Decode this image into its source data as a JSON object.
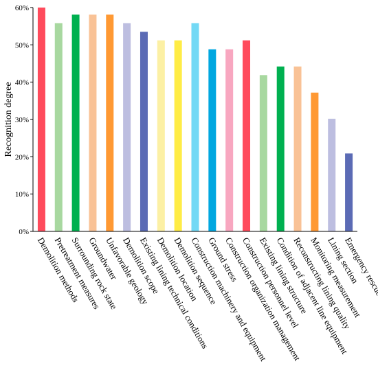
{
  "chart_data": {
    "type": "bar",
    "title": "",
    "xlabel": "",
    "ylabel": "Recognition degree",
    "ylim": [
      0,
      60
    ],
    "yticks": [
      "0%",
      "10%",
      "20%",
      "30%",
      "40%",
      "50%",
      "60%"
    ],
    "grid": false,
    "categories": [
      "Demolition methods",
      "Pretreatment measures",
      "Surrounding rock state",
      "Groundwater",
      "Unfavorable geology",
      "Demolition scope",
      "Existing lining technical conditions",
      "Demolition location",
      "Demolition sequence",
      "Construction machinery and equipment",
      "Ground stress",
      "Construction organization management",
      "Construction personnel level",
      "Existing lining structure",
      "Condition of adjacent line equipment",
      "Reconstructing lining quality",
      "Monitoring measurement",
      "Lining section",
      "Emergency rescue"
    ],
    "values": [
      60.0,
      55.8,
      58.1,
      58.1,
      58.1,
      55.8,
      53.5,
      51.2,
      51.2,
      55.8,
      48.8,
      48.8,
      51.2,
      41.9,
      44.2,
      44.2,
      37.2,
      30.2,
      20.9
    ],
    "colors": [
      "#FF4B5C",
      "#A8D8A0",
      "#00B050",
      "#F9C296",
      "#FF9933",
      "#BDBEE0",
      "#5B6BB5",
      "#FCF0A4",
      "#FFEC45",
      "#73D9F5",
      "#00A7E0",
      "#F8A7C0",
      "#FF4B5C",
      "#A8D8A0",
      "#00B050",
      "#F9C296",
      "#FF9933",
      "#BDBEE0",
      "#5B6BB5"
    ]
  }
}
